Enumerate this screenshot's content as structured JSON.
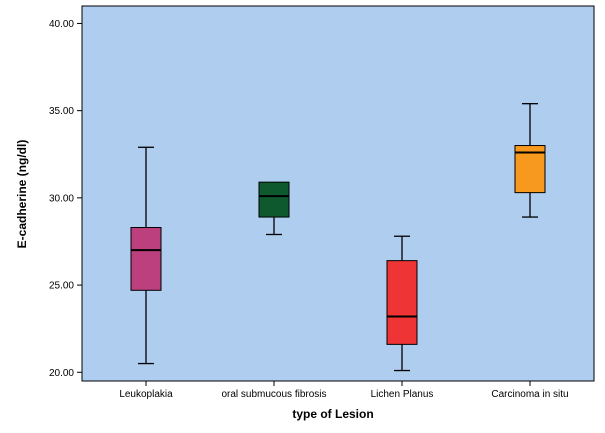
{
  "chart_data": {
    "type": "boxplot",
    "xlabel": "type of Lesion",
    "ylabel": "E-cadherine (ng/dl)",
    "ylim": [
      19.5,
      41.0
    ],
    "yticks": [
      {
        "value": 20,
        "label": "20.00"
      },
      {
        "value": 25,
        "label": "25.00"
      },
      {
        "value": 30,
        "label": "30.00"
      },
      {
        "value": 35,
        "label": "35.00"
      },
      {
        "value": 40,
        "label": "40.00"
      }
    ],
    "grid": false,
    "background_color": "#aecdef",
    "categories": [
      "Leukoplakia",
      "oral submucous fibrosis",
      "Lichen Planus",
      "Carcinoma in situ"
    ],
    "boxes": [
      {
        "category": "Leukoplakia",
        "min": 20.5,
        "q1": 24.7,
        "median": 27.0,
        "q3": 28.3,
        "max": 32.9,
        "color": "#bc3f7e"
      },
      {
        "category": "oral submucous fibrosis",
        "min": 27.9,
        "q1": 28.9,
        "median": 30.1,
        "q3": 30.9,
        "max": 30.9,
        "color": "#0e5a2e"
      },
      {
        "category": "Lichen Planus",
        "min": 20.1,
        "q1": 21.6,
        "median": 23.2,
        "q3": 26.4,
        "max": 27.8,
        "color": "#ee3434"
      },
      {
        "category": "Carcinoma in situ",
        "min": 28.9,
        "q1": 30.3,
        "median": 32.6,
        "q3": 33.0,
        "max": 35.4,
        "color": "#f7991e"
      }
    ]
  }
}
